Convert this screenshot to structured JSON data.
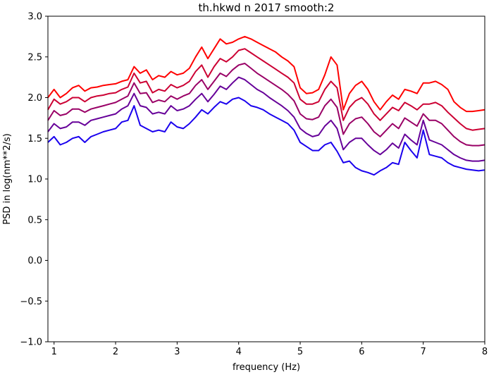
{
  "chart_data": {
    "type": "line",
    "title": "th.hkwd n 2017 smooth:2",
    "xlabel": "frequency (Hz)",
    "ylabel": "PSD in log(nm**2/s)",
    "xlim": [
      0.9,
      8.0
    ],
    "ylim": [
      -1.0,
      3.0
    ],
    "xticks": [
      1,
      2,
      3,
      4,
      5,
      6,
      7,
      8
    ],
    "xtick_labels": [
      "1",
      "2",
      "3",
      "4",
      "5",
      "6",
      "7",
      "8"
    ],
    "yticks": [
      -1.0,
      -0.5,
      0.0,
      0.5,
      1.0,
      1.5,
      2.0,
      2.5,
      3.0
    ],
    "ytick_labels": [
      "−1.0",
      "−0.5",
      "0.0",
      "0.5",
      "1.0",
      "1.5",
      "2.0",
      "2.5",
      "3.0"
    ],
    "grid": false,
    "legend": false,
    "x": [
      0.9,
      1.0,
      1.1,
      1.2,
      1.3,
      1.4,
      1.5,
      1.6,
      1.7,
      1.8,
      1.9,
      2.0,
      2.1,
      2.2,
      2.3,
      2.4,
      2.5,
      2.6,
      2.7,
      2.8,
      2.9,
      3.0,
      3.1,
      3.2,
      3.3,
      3.4,
      3.5,
      3.6,
      3.7,
      3.8,
      3.9,
      4.0,
      4.1,
      4.2,
      4.3,
      4.4,
      4.5,
      4.6,
      4.7,
      4.8,
      4.9,
      5.0,
      5.1,
      5.2,
      5.3,
      5.4,
      5.5,
      5.6,
      5.7,
      5.8,
      5.9,
      6.0,
      6.1,
      6.2,
      6.3,
      6.4,
      6.5,
      6.6,
      6.7,
      6.8,
      6.9,
      7.0,
      7.1,
      7.2,
      7.3,
      7.4,
      7.5,
      7.6,
      7.7,
      7.8,
      7.9,
      8.0
    ],
    "series": [
      {
        "color": "#ff0000",
        "values": [
          2.0,
          2.1,
          2.0,
          2.05,
          2.12,
          2.15,
          2.08,
          2.12,
          2.13,
          2.15,
          2.16,
          2.17,
          2.2,
          2.22,
          2.38,
          2.3,
          2.34,
          2.22,
          2.27,
          2.25,
          2.32,
          2.28,
          2.3,
          2.36,
          2.5,
          2.62,
          2.48,
          2.6,
          2.72,
          2.66,
          2.68,
          2.72,
          2.75,
          2.72,
          2.68,
          2.64,
          2.6,
          2.56,
          2.5,
          2.45,
          2.38,
          2.12,
          2.05,
          2.06,
          2.1,
          2.28,
          2.5,
          2.4,
          1.85,
          2.05,
          2.15,
          2.2,
          2.1,
          1.95,
          1.85,
          1.95,
          2.03,
          1.98,
          2.1,
          2.08,
          2.05,
          2.18,
          2.18,
          2.2,
          2.16,
          2.1,
          1.95,
          1.88,
          1.83,
          1.83,
          1.84,
          1.85
        ]
      },
      {
        "color": "#cc0033",
        "values": [
          1.85,
          1.98,
          1.92,
          1.95,
          2.0,
          2.0,
          1.95,
          2.0,
          2.02,
          2.03,
          2.05,
          2.06,
          2.1,
          2.13,
          2.3,
          2.18,
          2.2,
          2.06,
          2.1,
          2.08,
          2.16,
          2.12,
          2.15,
          2.2,
          2.32,
          2.4,
          2.25,
          2.38,
          2.48,
          2.44,
          2.5,
          2.58,
          2.6,
          2.55,
          2.5,
          2.45,
          2.4,
          2.35,
          2.3,
          2.25,
          2.18,
          1.98,
          1.92,
          1.92,
          1.95,
          2.1,
          2.2,
          2.12,
          1.72,
          1.88,
          1.96,
          2.0,
          1.92,
          1.8,
          1.72,
          1.8,
          1.88,
          1.84,
          1.94,
          1.9,
          1.85,
          1.92,
          1.92,
          1.94,
          1.9,
          1.82,
          1.75,
          1.68,
          1.62,
          1.6,
          1.61,
          1.62
        ]
      },
      {
        "color": "#990066",
        "values": [
          1.72,
          1.84,
          1.78,
          1.8,
          1.86,
          1.86,
          1.82,
          1.86,
          1.88,
          1.9,
          1.92,
          1.94,
          1.98,
          2.02,
          2.18,
          2.05,
          2.06,
          1.94,
          1.97,
          1.95,
          2.02,
          1.98,
          2.02,
          2.05,
          2.15,
          2.22,
          2.1,
          2.2,
          2.3,
          2.26,
          2.34,
          2.4,
          2.42,
          2.36,
          2.3,
          2.25,
          2.2,
          2.15,
          2.1,
          2.04,
          1.96,
          1.8,
          1.74,
          1.73,
          1.76,
          1.9,
          1.98,
          1.88,
          1.55,
          1.68,
          1.74,
          1.76,
          1.68,
          1.58,
          1.52,
          1.6,
          1.68,
          1.62,
          1.75,
          1.7,
          1.65,
          1.8,
          1.72,
          1.72,
          1.68,
          1.6,
          1.52,
          1.46,
          1.42,
          1.41,
          1.41,
          1.42
        ]
      },
      {
        "color": "#660099",
        "values": [
          1.58,
          1.68,
          1.62,
          1.64,
          1.7,
          1.7,
          1.66,
          1.72,
          1.74,
          1.76,
          1.78,
          1.8,
          1.86,
          1.9,
          2.05,
          1.9,
          1.88,
          1.8,
          1.82,
          1.8,
          1.9,
          1.84,
          1.86,
          1.9,
          1.98,
          2.05,
          1.95,
          2.04,
          2.14,
          2.1,
          2.18,
          2.25,
          2.22,
          2.16,
          2.1,
          2.06,
          2.0,
          1.95,
          1.9,
          1.84,
          1.76,
          1.62,
          1.56,
          1.52,
          1.54,
          1.65,
          1.72,
          1.62,
          1.36,
          1.45,
          1.5,
          1.5,
          1.42,
          1.35,
          1.3,
          1.36,
          1.44,
          1.38,
          1.55,
          1.48,
          1.42,
          1.72,
          1.48,
          1.45,
          1.42,
          1.36,
          1.3,
          1.26,
          1.23,
          1.22,
          1.22,
          1.23
        ]
      },
      {
        "color": "#1a00ee",
        "values": [
          1.45,
          1.52,
          1.42,
          1.45,
          1.5,
          1.52,
          1.45,
          1.52,
          1.55,
          1.58,
          1.6,
          1.62,
          1.7,
          1.72,
          1.9,
          1.66,
          1.62,
          1.58,
          1.6,
          1.58,
          1.7,
          1.64,
          1.62,
          1.68,
          1.76,
          1.85,
          1.8,
          1.88,
          1.95,
          1.92,
          1.98,
          2.0,
          1.96,
          1.9,
          1.88,
          1.85,
          1.8,
          1.76,
          1.72,
          1.68,
          1.6,
          1.45,
          1.4,
          1.35,
          1.35,
          1.42,
          1.45,
          1.34,
          1.2,
          1.22,
          1.14,
          1.1,
          1.08,
          1.05,
          1.1,
          1.14,
          1.2,
          1.18,
          1.45,
          1.35,
          1.26,
          1.6,
          1.3,
          1.28,
          1.26,
          1.2,
          1.16,
          1.14,
          1.12,
          1.11,
          1.1,
          1.11
        ]
      }
    ]
  }
}
